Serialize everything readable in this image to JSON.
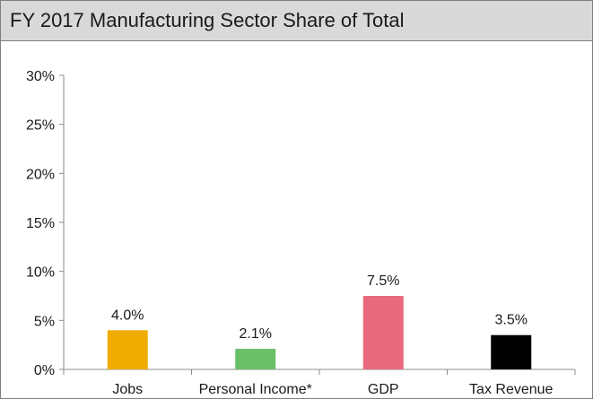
{
  "colors": {
    "title_bg": "#d9d9d9",
    "border": "#7f7f7f",
    "axis": "#8c8c8c"
  },
  "chart_data": {
    "type": "bar",
    "title": "FY 2017 Manufacturing Sector Share of Total",
    "categories": [
      "Jobs",
      "Personal Income*",
      "GDP",
      "Tax Revenue"
    ],
    "values": [
      4.0,
      2.1,
      7.5,
      3.5
    ],
    "data_labels": [
      "4.0%",
      "2.1%",
      "7.5%",
      "3.5%"
    ],
    "bar_colors": [
      "#f0ac00",
      "#6abf69",
      "#e8697d",
      "#000000"
    ],
    "ylim": [
      0,
      30
    ],
    "yticks": [
      0,
      5,
      10,
      15,
      20,
      25,
      30
    ],
    "ytick_labels": [
      "0%",
      "5%",
      "10%",
      "15%",
      "20%",
      "25%",
      "30%"
    ],
    "xlabel": "",
    "ylabel": "",
    "grid": false,
    "legend": "none"
  }
}
